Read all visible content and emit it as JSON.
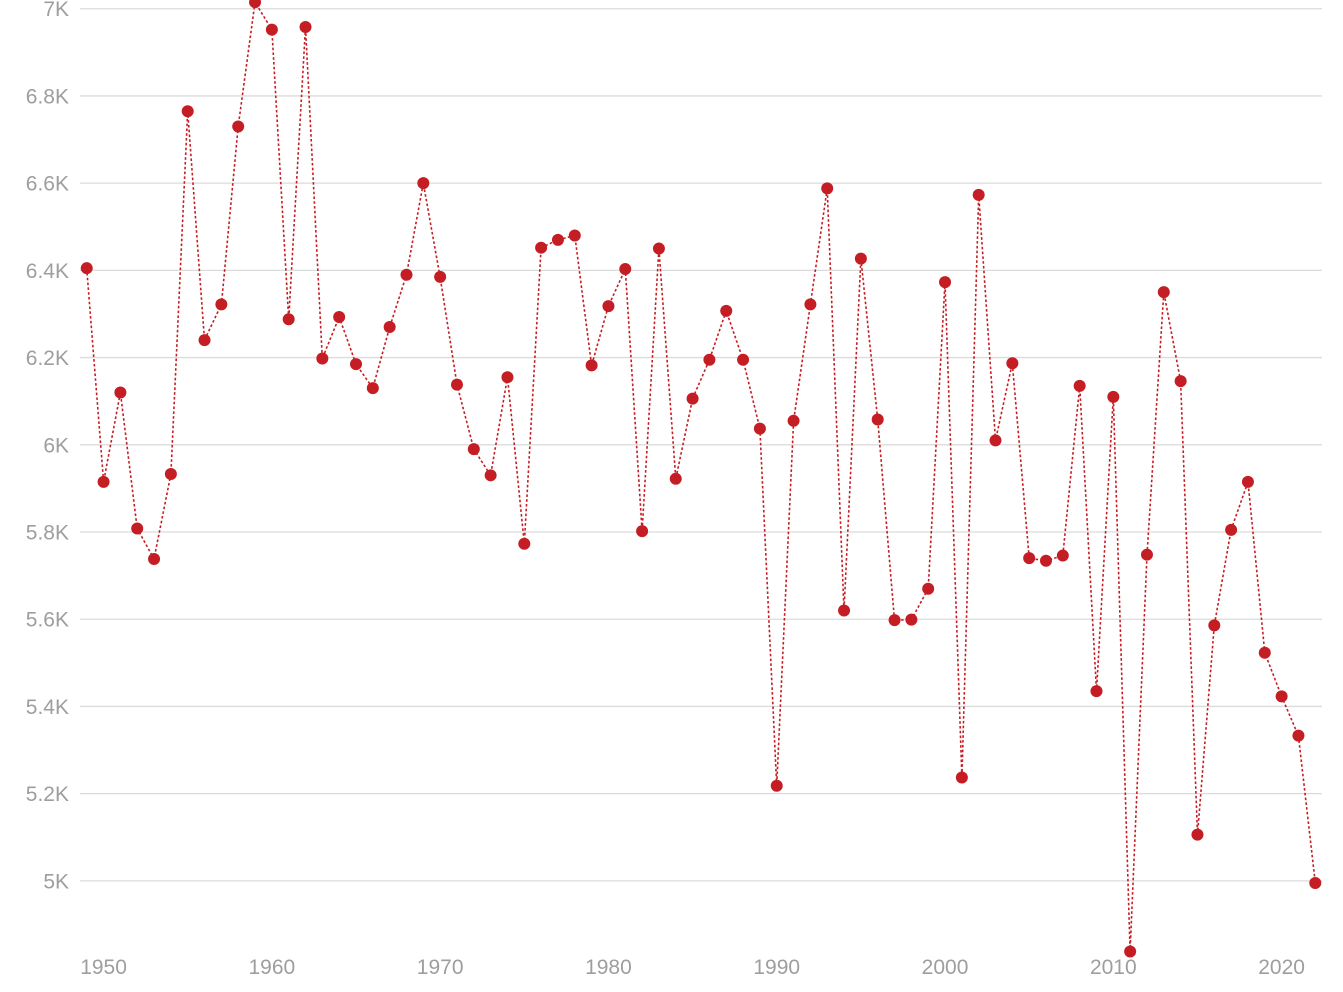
{
  "chart_data": {
    "type": "line",
    "title": "",
    "xlabel": "",
    "ylabel": "",
    "color": "#c41e24",
    "grid": true,
    "xlim": [
      1948.6,
      2022.4
    ],
    "ylim": [
      4830,
      7020
    ],
    "x_ticks": [
      1950,
      1960,
      1970,
      1980,
      1990,
      2000,
      2010,
      2020
    ],
    "x_tick_labels": [
      "1950",
      "1960",
      "1970",
      "1980",
      "1990",
      "2000",
      "2010",
      "2020"
    ],
    "y_ticks": [
      5000,
      5200,
      5400,
      5600,
      5800,
      6000,
      6200,
      6400,
      6600,
      6800,
      7000
    ],
    "y_tick_labels": [
      "5K",
      "5.2K",
      "5.4K",
      "5.6K",
      "5.8K",
      "6K",
      "6.2K",
      "6.4K",
      "6.6K",
      "6.8K",
      "7K"
    ],
    "x": [
      1949,
      1950,
      1951,
      1952,
      1953,
      1954,
      1955,
      1956,
      1957,
      1958,
      1959,
      1960,
      1961,
      1962,
      1963,
      1964,
      1965,
      1966,
      1967,
      1968,
      1969,
      1970,
      1971,
      1972,
      1973,
      1974,
      1975,
      1976,
      1977,
      1978,
      1979,
      1980,
      1981,
      1982,
      1983,
      1984,
      1985,
      1986,
      1987,
      1988,
      1989,
      1990,
      1991,
      1992,
      1993,
      1994,
      1995,
      1996,
      1997,
      1998,
      1999,
      2000,
      2001,
      2002,
      2003,
      2004,
      2005,
      2006,
      2007,
      2008,
      2009,
      2010,
      2011,
      2012,
      2013,
      2014,
      2015,
      2016,
      2017,
      2018,
      2019,
      2020,
      2021,
      2022
    ],
    "values": [
      6405,
      5915,
      6120,
      5808,
      5738,
      5933,
      6765,
      6240,
      6322,
      6730,
      7015,
      6952,
      6288,
      6958,
      6198,
      6293,
      6185,
      6130,
      6270,
      6390,
      6600,
      6385,
      6138,
      5990,
      5930,
      6155,
      5773,
      6452,
      6470,
      6480,
      6182,
      6318,
      6403,
      5802,
      6450,
      5922,
      6106,
      6195,
      6307,
      6195,
      6037,
      5218,
      6055,
      6322,
      6588,
      5620,
      6427,
      6058,
      5598,
      5599,
      5670,
      6373,
      5237,
      6573,
      6010,
      6187,
      5740,
      5734,
      5746,
      6135,
      5435,
      6110,
      4838,
      5748,
      6350,
      6146,
      5106,
      5586,
      5805,
      5915,
      5523,
      5423,
      5333,
      4995
    ]
  }
}
